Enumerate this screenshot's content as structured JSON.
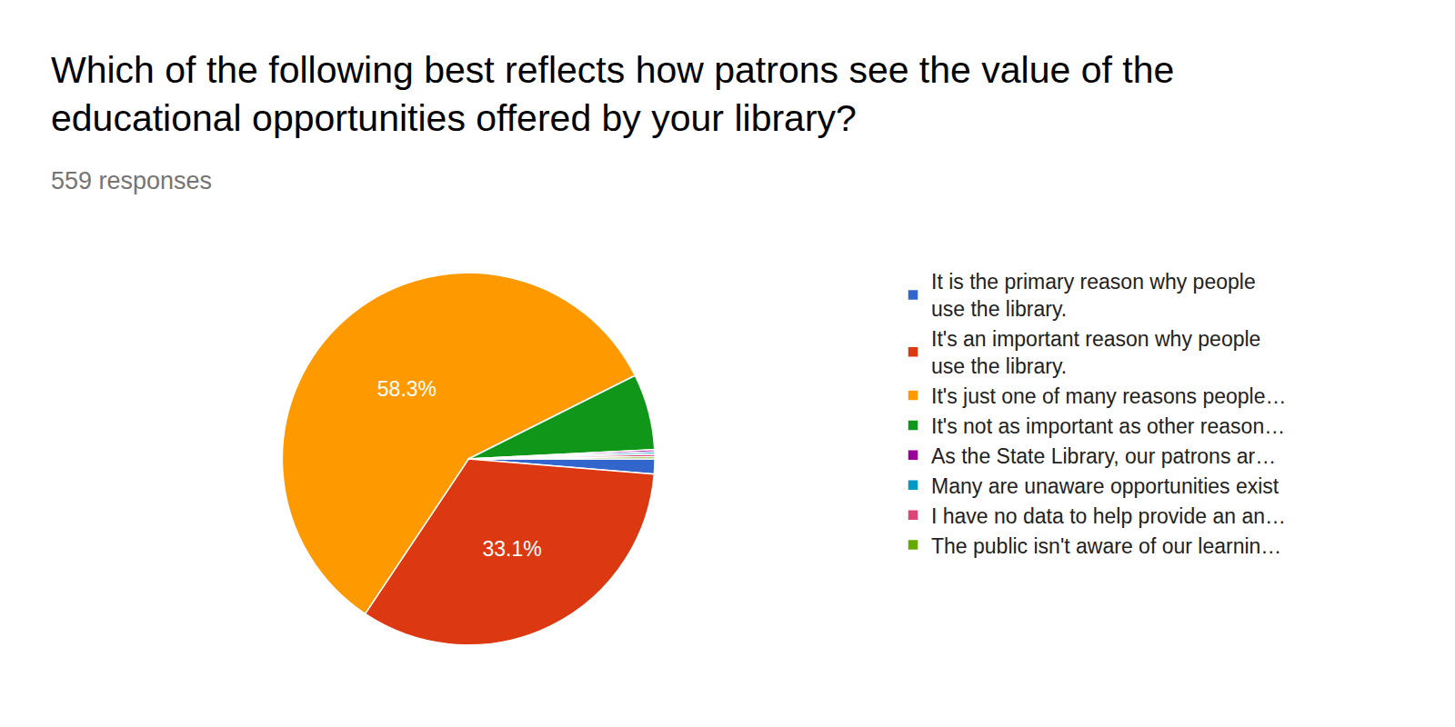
{
  "chart_data": {
    "type": "pie",
    "title": "Which of the following best reflects how patrons see the value of the educational opportunities offered by your library?",
    "subtitle": "559 responses",
    "categories": [
      "It is the primary reason why people use the library.",
      "It's an important reason why people use the library.",
      "It's just one of many reasons people…",
      "It's not as important as other reason…",
      "As the State Library, our patrons ar…",
      "Many are unaware opportunities exist",
      "I have no data to help provide an an…",
      "The public isn't aware of our learnin…"
    ],
    "values": [
      1.3,
      33.1,
      58.3,
      6.6,
      0.2,
      0.2,
      0.2,
      0.2
    ],
    "value_labels": [
      null,
      "33.1%",
      "58.3%",
      null,
      null,
      null,
      null,
      null
    ],
    "colors": [
      "#3366cc",
      "#dc3912",
      "#ff9900",
      "#109618",
      "#990099",
      "#0099c6",
      "#dd4477",
      "#66aa00"
    ],
    "data_labels": true,
    "legend": "right"
  }
}
